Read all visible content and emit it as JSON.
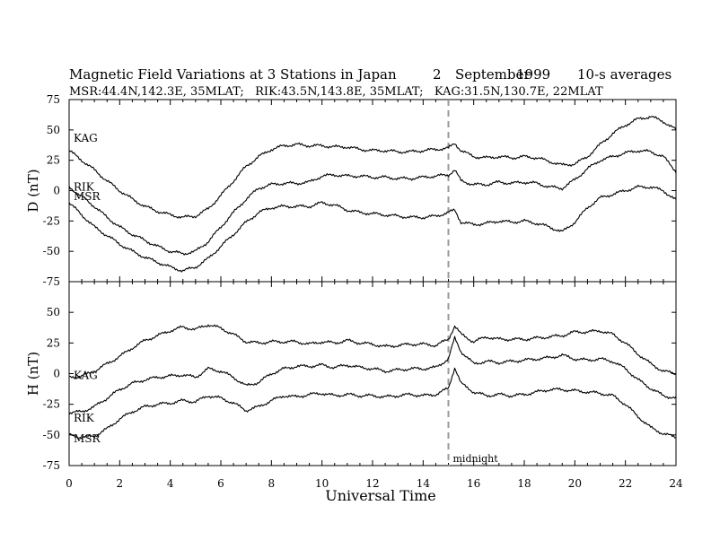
{
  "figure": {
    "title_main": "Magnetic Field Variations at 3 Stations in Japan",
    "title_day": "2",
    "title_month": "September",
    "title_year": "1999",
    "title_avg": "10-s averages",
    "subtitle": "MSR:44.4N,142.3E, 35MLAT;   RIK:43.5N,143.8E, 35MLAT;   KAG:31.5N,130.7E, 22MLAT"
  },
  "chart_data": [
    {
      "type": "line",
      "panel": "top",
      "ylabel": "D (nT)",
      "xlabel": "",
      "xlim": [
        0,
        24
      ],
      "ylim": [
        -75,
        75
      ],
      "yticks": [
        "75",
        "50",
        "25",
        "0",
        "-25",
        "-50",
        "-75"
      ],
      "xticks": [],
      "series": [
        {
          "name": "KAG",
          "x": [
            0,
            0.5,
            1,
            1.5,
            2,
            2.5,
            3,
            3.5,
            4,
            4.5,
            5,
            5.5,
            6,
            6.5,
            7,
            7.5,
            8,
            8.5,
            9,
            9.5,
            10,
            10.5,
            11,
            11.5,
            12,
            12.5,
            13,
            13.5,
            14,
            14.5,
            15,
            15.25,
            15.5,
            16,
            16.5,
            17,
            17.5,
            18,
            18.5,
            19,
            19.5,
            20,
            20.5,
            21,
            21.5,
            22,
            22.5,
            23,
            23.5,
            24
          ],
          "y": [
            33,
            25,
            17,
            8,
            0,
            -7,
            -13,
            -17,
            -20,
            -22,
            -21,
            -15,
            -4,
            8,
            20,
            28,
            34,
            37,
            38,
            37,
            37,
            36,
            36,
            34,
            33,
            33,
            32,
            32,
            33,
            34,
            35,
            39,
            33,
            28,
            27,
            28,
            27,
            28,
            27,
            24,
            21,
            22,
            28,
            38,
            47,
            54,
            59,
            61,
            57,
            50
          ]
        },
        {
          "name": "RIK",
          "x": [
            0,
            0.5,
            1,
            1.5,
            2,
            2.5,
            3,
            3.5,
            4,
            4.5,
            5,
            5.5,
            6,
            6.5,
            7,
            7.5,
            8,
            8.5,
            9,
            9.5,
            10,
            10.5,
            11,
            11.5,
            12,
            12.5,
            13,
            13.5,
            14,
            14.5,
            15,
            15.25,
            15.5,
            16,
            16.5,
            17,
            17.5,
            18,
            18.5,
            19,
            19.5,
            20,
            20.5,
            21,
            21.5,
            22,
            22.5,
            23,
            23.5,
            24
          ],
          "y": [
            3,
            -5,
            -13,
            -22,
            -30,
            -36,
            -41,
            -46,
            -50,
            -52,
            -50,
            -42,
            -30,
            -18,
            -7,
            2,
            5,
            6,
            6,
            7,
            12,
            13,
            12,
            12,
            11,
            11,
            10,
            10,
            11,
            12,
            13,
            17,
            8,
            5,
            5,
            7,
            6,
            7,
            6,
            3,
            2,
            9,
            18,
            25,
            28,
            31,
            33,
            32,
            28,
            16
          ]
        },
        {
          "name": "MSR",
          "x": [
            0,
            0.5,
            1,
            1.5,
            2,
            2.5,
            3,
            3.5,
            4,
            4.5,
            5,
            5.5,
            6,
            6.5,
            7,
            7.5,
            8,
            8.5,
            9,
            9.5,
            10,
            10.5,
            11,
            11.5,
            12,
            12.5,
            13,
            13.5,
            14,
            14.5,
            15,
            15.25,
            15.5,
            16,
            16.5,
            17,
            17.5,
            18,
            18.5,
            19,
            19.5,
            20,
            20.5,
            21,
            21.5,
            22,
            22.5,
            23,
            23.5,
            24
          ],
          "y": [
            -10,
            -20,
            -30,
            -37,
            -44,
            -50,
            -55,
            -59,
            -63,
            -66,
            -63,
            -56,
            -46,
            -36,
            -26,
            -18,
            -14,
            -13,
            -13,
            -13,
            -10,
            -12,
            -16,
            -18,
            -19,
            -20,
            -21,
            -22,
            -22,
            -21,
            -18,
            -16,
            -26,
            -28,
            -27,
            -25,
            -26,
            -25,
            -27,
            -30,
            -34,
            -26,
            -14,
            -6,
            -3,
            0,
            3,
            3,
            0,
            -8
          ]
        }
      ],
      "annotations": [
        {
          "type": "vline",
          "x": 15,
          "style": "dashed"
        }
      ]
    },
    {
      "type": "line",
      "panel": "bottom",
      "ylabel": "H (nT)",
      "xlabel": "Universal Time",
      "xlim": [
        0,
        24
      ],
      "ylim": [
        -75,
        75
      ],
      "yticks": [
        "50",
        "25",
        "0",
        "-25",
        "-50",
        "-75"
      ],
      "xticks": [
        "0",
        "2",
        "4",
        "6",
        "8",
        "10",
        "12",
        "14",
        "16",
        "18",
        "20",
        "22",
        "24"
      ],
      "series": [
        {
          "name": "KAG",
          "x": [
            0,
            0.5,
            1,
            1.5,
            2,
            2.5,
            3,
            3.5,
            4,
            4.5,
            5,
            5.5,
            6,
            6.5,
            7,
            7.5,
            8,
            8.5,
            9,
            9.5,
            10,
            10.5,
            11,
            11.5,
            12,
            12.5,
            13,
            13.5,
            14,
            14.5,
            15,
            15.25,
            15.5,
            16,
            16.5,
            17,
            17.5,
            18,
            18.5,
            19,
            19.5,
            20,
            20.5,
            21,
            21.5,
            22,
            22.5,
            23,
            23.5,
            24
          ],
          "y": [
            -3,
            -2,
            2,
            8,
            14,
            21,
            27,
            31,
            35,
            38,
            36,
            40,
            37,
            32,
            26,
            25,
            26,
            26,
            26,
            24,
            26,
            25,
            27,
            25,
            24,
            22,
            23,
            24,
            24,
            23,
            28,
            39,
            32,
            26,
            30,
            28,
            28,
            28,
            29,
            30,
            31,
            34,
            34,
            35,
            32,
            25,
            16,
            8,
            2,
            0
          ]
        },
        {
          "name": "RIK",
          "x": [
            0,
            0.5,
            1,
            1.5,
            2,
            2.5,
            3,
            3.5,
            4,
            4.5,
            5,
            5.5,
            6,
            6.5,
            7,
            7.5,
            8,
            8.5,
            9,
            9.5,
            10,
            10.5,
            11,
            11.5,
            12,
            12.5,
            13,
            13.5,
            14,
            14.5,
            15,
            15.25,
            15.5,
            16,
            16.5,
            17,
            17.5,
            18,
            18.5,
            19,
            19.5,
            20,
            20.5,
            21,
            21.5,
            22,
            22.5,
            23,
            23.5,
            24
          ],
          "y": [
            -32,
            -31,
            -27,
            -20,
            -13,
            -8,
            -5,
            -3,
            -2,
            -1,
            -3,
            4,
            2,
            -3,
            -10,
            -7,
            0,
            4,
            6,
            6,
            7,
            5,
            7,
            5,
            4,
            2,
            3,
            4,
            4,
            5,
            12,
            29,
            18,
            8,
            10,
            9,
            10,
            11,
            12,
            13,
            15,
            12,
            11,
            12,
            10,
            4,
            -5,
            -12,
            -18,
            -20
          ]
        },
        {
          "name": "MSR",
          "x": [
            0,
            0.5,
            1,
            1.5,
            2,
            2.5,
            3,
            3.5,
            4,
            4.5,
            5,
            5.5,
            6,
            6.5,
            7,
            7.5,
            8,
            8.5,
            9,
            9.5,
            10,
            10.5,
            11,
            11.5,
            12,
            12.5,
            13,
            13.5,
            14,
            14.5,
            15,
            15.25,
            15.5,
            16,
            16.5,
            17,
            17.5,
            18,
            18.5,
            19,
            19.5,
            20,
            20.5,
            21,
            21.5,
            22,
            22.5,
            23,
            23.5,
            24
          ],
          "y": [
            -50,
            -52,
            -51,
            -45,
            -37,
            -31,
            -27,
            -25,
            -24,
            -22,
            -23,
            -18,
            -20,
            -24,
            -30,
            -27,
            -22,
            -18,
            -19,
            -17,
            -16,
            -18,
            -17,
            -18,
            -18,
            -19,
            -18,
            -17,
            -18,
            -17,
            -12,
            5,
            -8,
            -15,
            -18,
            -17,
            -18,
            -17,
            -15,
            -13,
            -13,
            -14,
            -15,
            -16,
            -18,
            -25,
            -35,
            -44,
            -49,
            -52
          ]
        }
      ],
      "annotations": [
        {
          "type": "vline",
          "x": 15,
          "style": "dashed",
          "label": "midnight"
        }
      ]
    }
  ]
}
